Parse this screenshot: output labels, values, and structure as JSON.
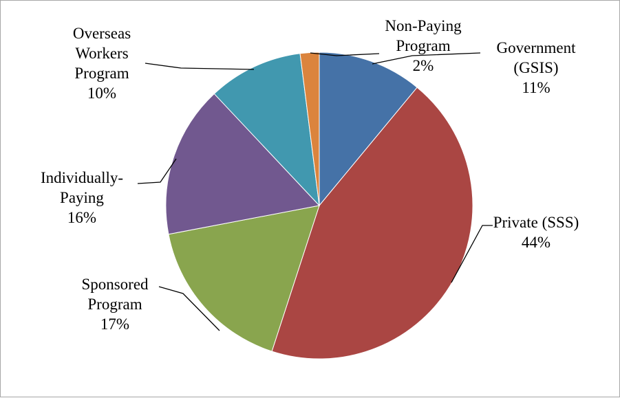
{
  "chart_data": {
    "type": "pie",
    "title": "",
    "slices": [
      {
        "label": "Government (GSIS)",
        "label_lines": [
          "Government",
          "(GSIS)"
        ],
        "percent_label": "11%",
        "value": 11,
        "color": "#4572A7"
      },
      {
        "label": "Private (SSS)",
        "label_lines": [
          "Private (SSS)"
        ],
        "percent_label": "44%",
        "value": 44,
        "color": "#AA4643"
      },
      {
        "label": "Sponsored Program",
        "label_lines": [
          "Sponsored",
          "Program"
        ],
        "percent_label": "17%",
        "value": 17,
        "color": "#89A54E"
      },
      {
        "label": "Individually-Paying",
        "label_lines": [
          "Individually-",
          "Paying"
        ],
        "percent_label": "16%",
        "value": 16,
        "color": "#71588F"
      },
      {
        "label": "Overseas Workers Program",
        "label_lines": [
          "Overseas",
          "Workers",
          "Program"
        ],
        "percent_label": "10%",
        "value": 10,
        "color": "#4198AF"
      },
      {
        "label": "Non-Paying Program",
        "label_lines": [
          "Non-Paying",
          "Program"
        ],
        "percent_label": "2%",
        "value": 2,
        "color": "#DB843D"
      }
    ],
    "start_angle": "12 o'clock",
    "direction": "clockwise",
    "legend": "none"
  }
}
